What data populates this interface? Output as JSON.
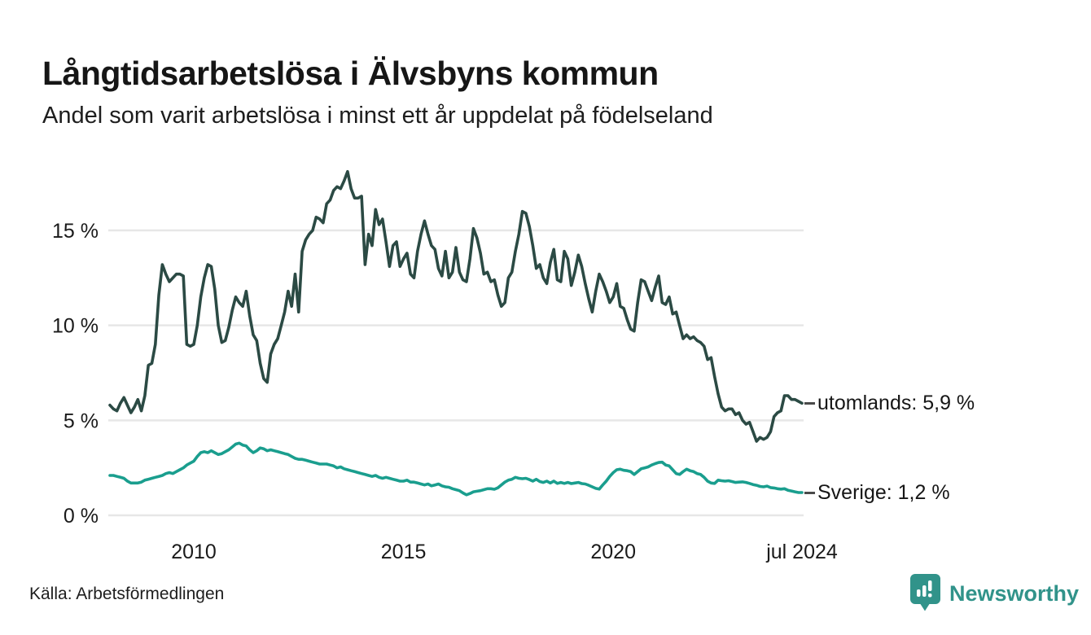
{
  "title": "Långtidsarbetslösa i Älvsbyns kommun",
  "subtitle": "Andel som varit arbetslösa i minst ett år uppdelat på födelseland",
  "source": "Källa: Arbetsförmedlingen",
  "logo": {
    "name": "Newsworthy"
  },
  "colors": {
    "text": "#1a1a1a",
    "grid": "#e7e7e7",
    "utomlands_line": "#2b4a44",
    "sverige_line": "#1a9e8e",
    "logo_teal": "#31938a"
  },
  "chart_data": {
    "type": "line",
    "title": "Långtidsarbetslösa i Älvsbyns kommun",
    "subtitle": "Andel som varit arbetslösa i minst ett år uppdelat på födelseland",
    "x_unit": "month",
    "x_start": "2008-01",
    "x_end": "2024-07",
    "ylim": [
      0,
      18.5
    ],
    "grid": "horizontal",
    "legend_position": "line-end-labels",
    "y_ticks": [
      {
        "label": "15 %",
        "value": 15
      },
      {
        "label": "10 %",
        "value": 10
      },
      {
        "label": "5 %",
        "value": 5
      },
      {
        "label": "0 %",
        "value": 0
      }
    ],
    "x_ticks": [
      {
        "label": "2010",
        "month_index": 24
      },
      {
        "label": "2015",
        "month_index": 84
      },
      {
        "label": "2020",
        "month_index": 144
      },
      {
        "label": "jul 2024",
        "month_index": 198
      }
    ],
    "series": [
      {
        "name": "utomlands",
        "end_label": "utomlands: 5,9 %",
        "end_value": "5,9 %",
        "color": "#2b4a44",
        "values": [
          5.8,
          5.6,
          5.5,
          5.9,
          6.2,
          5.8,
          5.4,
          5.7,
          6.1,
          5.5,
          6.3,
          7.9,
          8.0,
          9.0,
          11.6,
          13.2,
          12.7,
          12.3,
          12.5,
          12.7,
          12.7,
          12.6,
          9.0,
          8.9,
          9.0,
          10.0,
          11.5,
          12.5,
          13.2,
          13.1,
          11.9,
          10.0,
          9.1,
          9.2,
          9.9,
          10.8,
          11.5,
          11.2,
          11.0,
          11.8,
          10.5,
          9.5,
          9.2,
          8.0,
          7.2,
          7.0,
          8.5,
          9.0,
          9.3,
          10.0,
          10.7,
          11.8,
          11.0,
          12.7,
          10.7,
          13.9,
          14.5,
          14.8,
          15.0,
          15.7,
          15.6,
          15.4,
          16.4,
          16.6,
          17.1,
          17.3,
          17.2,
          17.6,
          18.1,
          17.2,
          16.7,
          16.7,
          16.8,
          13.2,
          14.8,
          14.2,
          16.1,
          15.3,
          15.6,
          14.4,
          13.1,
          14.2,
          14.4,
          13.1,
          13.5,
          13.8,
          12.7,
          12.5,
          13.9,
          14.8,
          15.5,
          14.8,
          14.2,
          14.0,
          13.0,
          12.6,
          13.9,
          12.5,
          12.8,
          14.1,
          12.8,
          12.4,
          12.3,
          13.5,
          15.1,
          14.6,
          13.8,
          12.7,
          12.8,
          12.3,
          12.4,
          11.6,
          11.0,
          11.2,
          12.5,
          12.8,
          13.9,
          14.8,
          16.0,
          15.9,
          15.2,
          14.2,
          13.0,
          13.2,
          12.5,
          12.2,
          13.3,
          14.0,
          12.4,
          12.3,
          13.9,
          13.5,
          12.1,
          12.8,
          13.7,
          13.1,
          12.2,
          11.4,
          10.7,
          11.8,
          12.7,
          12.3,
          11.8,
          11.2,
          11.5,
          12.2,
          11.0,
          10.9,
          10.3,
          9.8,
          9.7,
          11.2,
          12.4,
          12.3,
          11.8,
          11.3,
          12.0,
          12.6,
          11.2,
          11.1,
          11.5,
          10.6,
          10.7,
          10.0,
          9.3,
          9.5,
          9.3,
          9.4,
          9.2,
          9.1,
          8.9,
          8.2,
          8.3,
          7.3,
          6.4,
          5.7,
          5.5,
          5.6,
          5.6,
          5.3,
          5.4,
          5.0,
          4.8,
          4.9,
          4.4,
          3.9,
          4.1,
          4.0,
          4.1,
          4.4,
          5.2,
          5.4,
          5.5,
          6.3,
          6.3,
          6.1,
          6.1,
          6.0,
          5.9
        ]
      },
      {
        "name": "sverige",
        "end_label": "Sverige: 1,2 %",
        "end_value": "1,2 %",
        "color": "#1a9e8e",
        "values": [
          2.1,
          2.1,
          2.05,
          2.0,
          1.95,
          1.8,
          1.7,
          1.7,
          1.7,
          1.75,
          1.85,
          1.9,
          1.95,
          2.0,
          2.05,
          2.1,
          2.2,
          2.25,
          2.2,
          2.3,
          2.4,
          2.5,
          2.65,
          2.75,
          2.85,
          3.1,
          3.3,
          3.35,
          3.3,
          3.4,
          3.3,
          3.2,
          3.25,
          3.35,
          3.45,
          3.6,
          3.75,
          3.8,
          3.7,
          3.65,
          3.45,
          3.3,
          3.4,
          3.55,
          3.5,
          3.4,
          3.45,
          3.4,
          3.35,
          3.3,
          3.25,
          3.2,
          3.1,
          3.0,
          2.95,
          2.95,
          2.9,
          2.85,
          2.8,
          2.75,
          2.7,
          2.7,
          2.7,
          2.65,
          2.6,
          2.5,
          2.55,
          2.45,
          2.4,
          2.35,
          2.3,
          2.25,
          2.2,
          2.15,
          2.1,
          2.05,
          2.1,
          2.0,
          1.95,
          2.0,
          1.95,
          1.9,
          1.85,
          1.8,
          1.8,
          1.85,
          1.75,
          1.75,
          1.7,
          1.65,
          1.6,
          1.65,
          1.55,
          1.6,
          1.65,
          1.55,
          1.5,
          1.48,
          1.4,
          1.35,
          1.3,
          1.18,
          1.08,
          1.15,
          1.24,
          1.27,
          1.3,
          1.35,
          1.4,
          1.4,
          1.37,
          1.45,
          1.6,
          1.75,
          1.85,
          1.9,
          2.0,
          1.95,
          1.93,
          1.95,
          1.88,
          1.8,
          1.9,
          1.78,
          1.73,
          1.8,
          1.7,
          1.8,
          1.68,
          1.73,
          1.68,
          1.73,
          1.67,
          1.7,
          1.73,
          1.67,
          1.65,
          1.58,
          1.5,
          1.42,
          1.38,
          1.6,
          1.8,
          2.05,
          2.25,
          2.4,
          2.43,
          2.37,
          2.35,
          2.3,
          2.15,
          2.3,
          2.45,
          2.5,
          2.55,
          2.65,
          2.72,
          2.78,
          2.8,
          2.65,
          2.6,
          2.4,
          2.2,
          2.15,
          2.3,
          2.43,
          2.35,
          2.3,
          2.2,
          2.15,
          2.0,
          1.8,
          1.7,
          1.68,
          1.85,
          1.82,
          1.8,
          1.82,
          1.78,
          1.73,
          1.75,
          1.76,
          1.73,
          1.68,
          1.62,
          1.58,
          1.52,
          1.5,
          1.54,
          1.46,
          1.44,
          1.4,
          1.38,
          1.4,
          1.32,
          1.28,
          1.24,
          1.2,
          1.2
        ]
      }
    ]
  }
}
